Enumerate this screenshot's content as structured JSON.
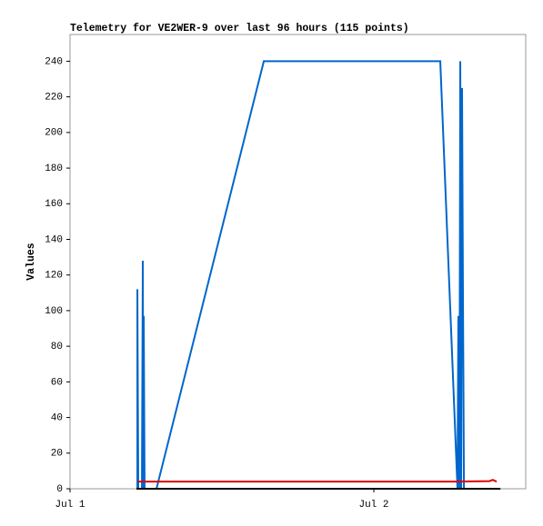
{
  "chart_data": {
    "type": "line",
    "title": "Telemetry for VE2WER-9 over last 96 hours (115 points)",
    "y_label": "Values",
    "xlim": [
      0,
      36
    ],
    "xticks": [
      {
        "value": 0,
        "label": "Jul 1"
      },
      {
        "value": 24,
        "label": "Jul 2"
      }
    ],
    "ylim": [
      0,
      255
    ],
    "yticks": [
      0,
      20,
      40,
      60,
      80,
      100,
      120,
      140,
      160,
      180,
      200,
      220,
      240
    ],
    "grid": false,
    "series": [
      {
        "color": "#0066cc",
        "x": [
          5.32,
          5.32,
          5.39,
          5.68,
          5.75,
          5.79,
          5.82,
          5.89,
          6.83,
          15.31,
          29.25,
          30.61,
          30.68,
          30.76,
          30.83,
          30.9,
          30.97,
          31.04,
          31.12
        ],
        "values": [
          0,
          112,
          0,
          0,
          128,
          0,
          97,
          0,
          0,
          240,
          240,
          0,
          97,
          0,
          240,
          0,
          225,
          112,
          0
        ]
      },
      {
        "color": "#dd0000",
        "x": [
          5.32,
          30.5,
          33.13,
          33.4,
          33.7
        ],
        "values": [
          4,
          4,
          4.3,
          5,
          4
        ]
      },
      {
        "color": "#000000",
        "x": [
          5.25,
          34.0
        ],
        "values": [
          0,
          0
        ]
      }
    ]
  }
}
